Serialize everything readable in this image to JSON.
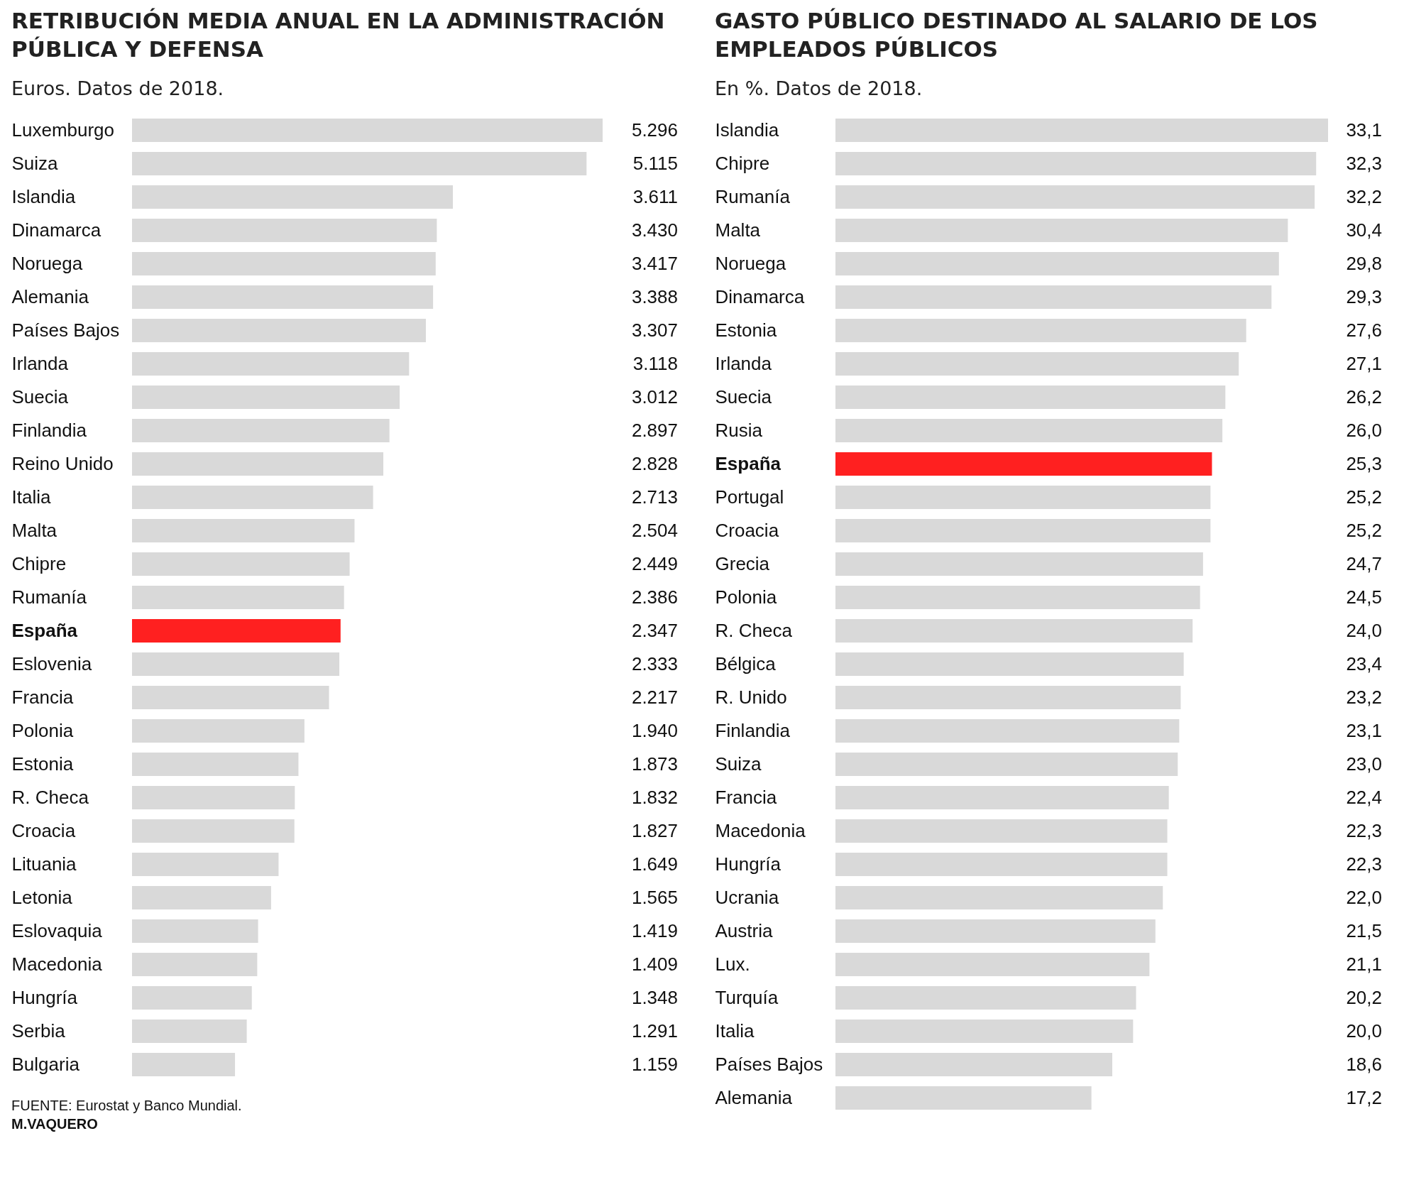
{
  "chart_data": [
    {
      "type": "bar",
      "orientation": "horizontal",
      "title": "RETRIBUCIÓN MEDIA ANUAL EN LA ADMINISTRACIÓN\nPÚBLICA Y DEFENSA",
      "subtitle": "Euros. Datos de 2018.",
      "categories": [
        "Luxemburgo",
        "Suiza",
        "Islandia",
        "Dinamarca",
        "Noruega",
        "Alemania",
        "Países Bajos",
        "Irlanda",
        "Suecia",
        "Finlandia",
        "Reino Unido",
        "Italia",
        "Malta",
        "Chipre",
        "Rumanía",
        "España",
        "Eslovenia",
        "Francia",
        "Polonia",
        "Estonia",
        "R. Checa",
        "Croacia",
        "Lituania",
        "Letonia",
        "Eslovaquia",
        "Macedonia",
        "Hungría",
        "Serbia",
        "Bulgaria"
      ],
      "values": [
        5296,
        5115,
        3611,
        3430,
        3417,
        3388,
        3307,
        3118,
        3012,
        2897,
        2828,
        2713,
        2504,
        2449,
        2386,
        2347,
        2333,
        2217,
        1940,
        1873,
        1832,
        1827,
        1649,
        1565,
        1419,
        1409,
        1348,
        1291,
        1159
      ],
      "value_labels": [
        "5.296",
        "5.115",
        "3.611",
        "3.430",
        "3.417",
        "3.388",
        "3.307",
        "3.118",
        "3.012",
        "2.897",
        "2.828",
        "2.713",
        "2.504",
        "2.449",
        "2.386",
        "2.347",
        "2.333",
        "2.217",
        "1.940",
        "1.873",
        "1.832",
        "1.827",
        "1.649",
        "1.565",
        "1.419",
        "1.409",
        "1.348",
        "1.291",
        "1.159"
      ],
      "colors": [
        "#d9d9d9",
        "#d9d9d9",
        "#d9d9d9",
        "#d9d9d9",
        "#d9d9d9",
        "#d9d9d9",
        "#d9d9d9",
        "#d9d9d9",
        "#d9d9d9",
        "#d9d9d9",
        "#d9d9d9",
        "#d9d9d9",
        "#d9d9d9",
        "#d9d9d9",
        "#d9d9d9",
        "#ff2020",
        "#d9d9d9",
        "#d9d9d9",
        "#d9d9d9",
        "#d9d9d9",
        "#d9d9d9",
        "#d9d9d9",
        "#d9d9d9",
        "#d9d9d9",
        "#d9d9d9",
        "#d9d9d9",
        "#d9d9d9",
        "#d9d9d9",
        "#d9d9d9"
      ],
      "annotations": [
        "FUENTE: Eurostat y Banco Mundial.",
        "M.VAQUERO"
      ]
    },
    {
      "type": "bar",
      "orientation": "horizontal",
      "title": "GASTO PÚBLICO DESTINADO AL SALARIO DE LOS\nEMPLEADOS PÚBLICOS",
      "subtitle": "En %. Datos de 2018.",
      "categories": [
        "Islandia",
        "Chipre",
        "Rumanía",
        "Malta",
        "Noruega",
        "Dinamarca",
        "Estonia",
        "Irlanda",
        "Suecia",
        "Rusia",
        "España",
        "Portugal",
        "Croacia",
        "Grecia",
        "Polonia",
        "R. Checa",
        "Bélgica",
        "R. Unido",
        "Finlandia",
        "Suiza",
        "Francia",
        "Macedonia",
        "Hungría",
        "Ucrania",
        "Austria",
        "Lux.",
        "Turquía",
        "Italia",
        "Países Bajos",
        "Alemania"
      ],
      "values": [
        33.1,
        32.3,
        32.2,
        30.4,
        29.8,
        29.3,
        27.6,
        27.1,
        26.2,
        26.0,
        25.3,
        25.2,
        25.2,
        24.7,
        24.5,
        24.0,
        23.4,
        23.2,
        23.1,
        23.0,
        22.4,
        22.3,
        22.3,
        22.0,
        21.5,
        21.1,
        20.2,
        20.0,
        18.6,
        17.2
      ],
      "value_labels": [
        "33,1",
        "32,3",
        "32,2",
        "30,4",
        "29,8",
        "29,3",
        "27,6",
        "27,1",
        "26,2",
        "26,0",
        "25,3",
        "25,2",
        "25,2",
        "24,7",
        "24,5",
        "24,0",
        "23,4",
        "23,2",
        "23,1",
        "23,0",
        "22,4",
        "22,3",
        "22,3",
        "22,0",
        "21,5",
        "21,1",
        "20,2",
        "20,0",
        "18,6",
        "17,2"
      ],
      "colors": [
        "#d9d9d9",
        "#d9d9d9",
        "#d9d9d9",
        "#d9d9d9",
        "#d9d9d9",
        "#d9d9d9",
        "#d9d9d9",
        "#d9d9d9",
        "#d9d9d9",
        "#d9d9d9",
        "#ff2020",
        "#d9d9d9",
        "#d9d9d9",
        "#d9d9d9",
        "#d9d9d9",
        "#d9d9d9",
        "#d9d9d9",
        "#d9d9d9",
        "#d9d9d9",
        "#d9d9d9",
        "#d9d9d9",
        "#d9d9d9",
        "#d9d9d9",
        "#d9d9d9",
        "#d9d9d9",
        "#d9d9d9",
        "#d9d9d9",
        "#d9d9d9",
        "#d9d9d9",
        "#d9d9d9"
      ]
    }
  ]
}
